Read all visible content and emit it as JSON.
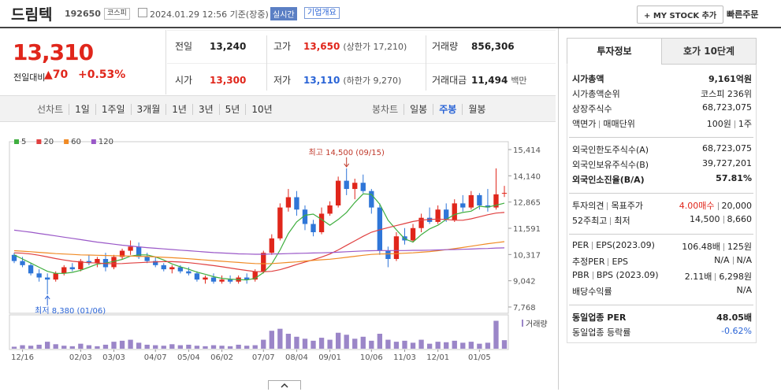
{
  "header": {
    "name": "드림텍",
    "code": "192650",
    "market": "코스피",
    "timestamp": "2024.01.29 12:56 기준(장중)",
    "realtime": "실시간",
    "company_info": "기업개요",
    "my_stock": "+ MY STOCK 추가",
    "quick_order": "빠른주문"
  },
  "price": {
    "current": "13,310",
    "change_label": "전일대비",
    "change": "▲70",
    "change_rate": "+0.53%"
  },
  "summary": [
    {
      "label": "전일",
      "value": "13,240"
    },
    {
      "label": "고가",
      "value": "13,650",
      "note": "(상한가 17,210)",
      "color": "#e0261b"
    },
    {
      "label": "거래량",
      "value": "856,306"
    },
    {
      "label": "시가",
      "value": "13,300",
      "color": "#e0261b"
    },
    {
      "label": "저가",
      "value": "13,110",
      "note": "(하한가 9,270)",
      "color": "#2a64d6"
    },
    {
      "label": "거래대금",
      "value": "11,494",
      "note": "백만"
    }
  ],
  "period_tabs": {
    "line_label": "선차트",
    "line": [
      "1일",
      "1주일",
      "3개월",
      "1년",
      "3년",
      "5년",
      "10년"
    ],
    "candle_label": "봉차트",
    "candle": [
      "일봉",
      "주봉",
      "월봉"
    ],
    "active": "주봉"
  },
  "chart_data": {
    "type": "candlestick",
    "categories": [
      null,
      "12/16",
      null,
      null,
      null,
      null,
      null,
      null,
      "02/03",
      null,
      null,
      null,
      "03/03",
      null,
      null,
      null,
      null,
      "04/07",
      null,
      null,
      null,
      "05/04",
      null,
      null,
      null,
      "06/02",
      null,
      null,
      null,
      null,
      "07/07",
      null,
      null,
      null,
      "08/04",
      null,
      null,
      null,
      "09/01",
      null,
      null,
      null,
      null,
      "10/06",
      null,
      null,
      null,
      "11/03",
      null,
      null,
      null,
      "12/01",
      null,
      null,
      null,
      null,
      "01/05",
      null,
      null,
      null
    ],
    "open": [
      10300,
      10000,
      9800,
      9400,
      9200,
      9100,
      9400,
      9700,
      9600,
      10000,
      9900,
      10100,
      9700,
      10200,
      10500,
      10700,
      10200,
      10000,
      9800,
      9600,
      9700,
      9500,
      9400,
      9100,
      9200,
      9000,
      9100,
      9000,
      9200,
      9100,
      9500,
      10400,
      11100,
      12600,
      13100,
      12500,
      11800,
      11400,
      12300,
      12700,
      13900,
      13500,
      13800,
      13400,
      12600,
      10500,
      10100,
      11200,
      11000,
      11600,
      12100,
      11900,
      12500,
      12000,
      12800,
      12600,
      13200,
      12700,
      12600,
      13300
    ],
    "high": [
      10400,
      10200,
      9900,
      9600,
      9400,
      9500,
      9800,
      9900,
      10100,
      10300,
      10200,
      10400,
      10300,
      10600,
      11000,
      10900,
      10400,
      10200,
      9900,
      9800,
      9800,
      9700,
      9500,
      9300,
      9400,
      9300,
      9300,
      9300,
      9400,
      9600,
      10500,
      11300,
      12800,
      13500,
      13400,
      12700,
      12000,
      12600,
      12900,
      14100,
      14500,
      14000,
      14200,
      13500,
      12800,
      10700,
      11400,
      11600,
      11800,
      12300,
      12600,
      12700,
      12800,
      13000,
      13200,
      13400,
      13300,
      13500,
      14500,
      13650
    ],
    "low": [
      9900,
      9700,
      9300,
      9000,
      8380,
      9000,
      9300,
      9500,
      9500,
      9800,
      9700,
      9500,
      9600,
      10100,
      10300,
      10100,
      9900,
      9700,
      9500,
      9400,
      9400,
      9300,
      9000,
      8900,
      8900,
      8900,
      8900,
      8900,
      8900,
      9000,
      9400,
      10300,
      11000,
      12400,
      12200,
      11500,
      11200,
      11300,
      12200,
      12600,
      13200,
      13000,
      13300,
      12300,
      10300,
      9700,
      10000,
      10800,
      10900,
      11400,
      11800,
      11800,
      11900,
      11900,
      12400,
      12500,
      12500,
      12400,
      12500,
      13110
    ],
    "close": [
      10000,
      9800,
      9400,
      9200,
      9100,
      9400,
      9700,
      9600,
      10000,
      9900,
      10100,
      9700,
      10200,
      10500,
      10700,
      10200,
      10000,
      9800,
      9600,
      9700,
      9500,
      9400,
      9100,
      9200,
      9000,
      9100,
      9000,
      9200,
      9100,
      9500,
      10400,
      11100,
      12600,
      13100,
      12500,
      11800,
      11400,
      12300,
      12700,
      13900,
      13500,
      13800,
      13400,
      12600,
      10500,
      10100,
      11200,
      11000,
      11600,
      12100,
      11900,
      12500,
      12000,
      12800,
      12600,
      13200,
      12700,
      12600,
      13240,
      13310
    ],
    "volume": [
      200000,
      350000,
      300000,
      400000,
      700000,
      450000,
      300000,
      250000,
      500000,
      350000,
      250000,
      400000,
      700000,
      800000,
      900000,
      600000,
      400000,
      350000,
      300000,
      450000,
      350000,
      400000,
      300000,
      250000,
      350000,
      300000,
      250000,
      400000,
      300000,
      350000,
      900000,
      1800000,
      2000000,
      1500000,
      1200000,
      1000000,
      800000,
      1100000,
      900000,
      1600000,
      1400000,
      1000000,
      1200000,
      800000,
      1500000,
      900000,
      700000,
      800000,
      600000,
      900000,
      500000,
      700000,
      650000,
      800000,
      600000,
      700000,
      500000,
      600000,
      2800000,
      856306
    ],
    "moving_averages": [
      {
        "name": "5",
        "color": "#3fae3f",
        "values": [
          10300,
          10100,
          9900,
          9700,
          9500,
          9400,
          9400,
          9450,
          9550,
          9700,
          9850,
          9900,
          9980,
          10080,
          10240,
          10300,
          10300,
          10200,
          10050,
          9860,
          9720,
          9600,
          9460,
          9360,
          9240,
          9160,
          9120,
          9100,
          9080,
          9160,
          9440,
          9860,
          10540,
          11340,
          11900,
          12220,
          12280,
          12020,
          11740,
          12020,
          12360,
          12840,
          13260,
          13240,
          12760,
          11980,
          11520,
          11080,
          10920,
          11280,
          11560,
          11740,
          12020,
          12260,
          12360,
          12420,
          12660,
          12620,
          12710,
          12810
        ]
      },
      {
        "name": "20",
        "color": "#e04040",
        "values": [
          10400,
          10380,
          10340,
          10280,
          10200,
          10120,
          10050,
          9990,
          9950,
          9920,
          9900,
          9880,
          9870,
          9880,
          9900,
          9920,
          9940,
          9960,
          9970,
          9970,
          9950,
          9920,
          9880,
          9830,
          9780,
          9720,
          9660,
          9600,
          9540,
          9490,
          9480,
          9500,
          9580,
          9700,
          9830,
          9950,
          10060,
          10190,
          10340,
          10540,
          10760,
          10980,
          11200,
          11400,
          11520,
          11620,
          11720,
          11820,
          11920,
          11990,
          12020,
          12040,
          12020,
          11980,
          11980,
          12050,
          12150,
          12250,
          12330,
          12360
        ]
      },
      {
        "name": "60",
        "color": "#f08a24",
        "values": [
          10500,
          10480,
          10450,
          10420,
          10390,
          10360,
          10340,
          10320,
          10300,
          10290,
          10280,
          10270,
          10260,
          10250,
          10240,
          10230,
          10220,
          10200,
          10180,
          10160,
          10140,
          10110,
          10080,
          10050,
          10020,
          9990,
          9960,
          9930,
          9900,
          9880,
          9870,
          9880,
          9900,
          9930,
          9960,
          10000,
          10030,
          10060,
          10090,
          10130,
          10180,
          10230,
          10280,
          10320,
          10340,
          10350,
          10360,
          10380,
          10400,
          10430,
          10460,
          10500,
          10550,
          10600,
          10660,
          10720,
          10780,
          10840,
          10890,
          10940
        ]
      },
      {
        "name": "120",
        "color": "#9a58c8",
        "values": [
          11500,
          11450,
          11400,
          11340,
          11280,
          11220,
          11160,
          11100,
          11040,
          10980,
          10920,
          10870,
          10820,
          10770,
          10730,
          10690,
          10650,
          10620,
          10590,
          10560,
          10530,
          10500,
          10470,
          10440,
          10410,
          10390,
          10370,
          10350,
          10340,
          10330,
          10330,
          10340,
          10350,
          10360,
          10370,
          10380,
          10390,
          10400,
          10410,
          10430,
          10450,
          10470,
          10490,
          10500,
          10510,
          10510,
          10510,
          10510,
          10520,
          10520,
          10530,
          10540,
          10550,
          10560,
          10570,
          10580,
          10600,
          10610,
          10630,
          10640
        ]
      }
    ],
    "up_color": "#e0261b",
    "down_color": "#2f76d8",
    "volume_color": "#9b86c8",
    "ylim": [
      7768,
      15414
    ],
    "yticks": [
      {
        "value": 15414,
        "label": "15,414"
      },
      {
        "value": 14140,
        "label": "14,140"
      },
      {
        "value": 12865,
        "label": "12,865"
      },
      {
        "value": 11591,
        "label": "11,591"
      },
      {
        "value": 10317,
        "label": "10,317"
      },
      {
        "value": 9042,
        "label": "9,042"
      },
      {
        "value": 7768,
        "label": "7,768"
      }
    ],
    "volume_ylim": [
      0,
      3000000
    ],
    "volume_label": "거래량",
    "annotations": [
      {
        "text": "최고 14,500 (09/15)",
        "index": 40,
        "value": 14500,
        "position": "above"
      },
      {
        "text": "최저 8,380 (01/06)",
        "index": 4,
        "value": 8380,
        "position": "below"
      }
    ]
  },
  "side_panel": {
    "tabs": [
      "투자정보",
      "호가 10단계"
    ],
    "active": "투자정보",
    "groups": [
      [
        {
          "label": [
            "시가총액"
          ],
          "values": [
            "9,161억원"
          ],
          "bold": true
        },
        {
          "label": [
            "시가총액순위"
          ],
          "values": [
            "코스피 236위"
          ]
        },
        {
          "label": [
            "상장주식수"
          ],
          "values": [
            "68,723,075"
          ]
        },
        {
          "label": [
            "액면가",
            "매매단위"
          ],
          "values": [
            "100원",
            "1주"
          ]
        }
      ],
      [
        {
          "label": [
            "외국인한도주식수(A)"
          ],
          "values": [
            "68,723,075"
          ]
        },
        {
          "label": [
            "외국인보유주식수(B)"
          ],
          "values": [
            "39,727,201"
          ]
        },
        {
          "label": [
            "외국인소진율(B/A)"
          ],
          "values": [
            "57.81%"
          ],
          "bold": true
        }
      ],
      [
        {
          "label": [
            "투자의견",
            "목표주가"
          ],
          "values": [
            {
              "text": "4.00매수",
              "color": "#e0261b"
            },
            "20,000"
          ]
        },
        {
          "label": [
            "52주최고",
            "최저"
          ],
          "values": [
            "14,500",
            "8,660"
          ]
        }
      ],
      [
        {
          "label": [
            "PER",
            "EPS(2023.09)"
          ],
          "values": [
            "106.48배",
            "125원"
          ]
        },
        {
          "label": [
            "추정PER",
            "EPS"
          ],
          "values": [
            "N/A",
            "N/A"
          ]
        },
        {
          "label": [
            "PBR",
            "BPS (2023.09)"
          ],
          "values": [
            "2.11배",
            "6,298원"
          ]
        },
        {
          "label": [
            "배당수익률"
          ],
          "values": [
            "N/A"
          ]
        }
      ],
      [
        {
          "label": [
            "동일업종 PER"
          ],
          "values": [
            "48.05배"
          ],
          "bold": true
        },
        {
          "label": [
            "동일업종 등락률"
          ],
          "values": [
            {
              "text": "-0.62%",
              "color": "#2a64d6"
            }
          ]
        }
      ]
    ]
  }
}
